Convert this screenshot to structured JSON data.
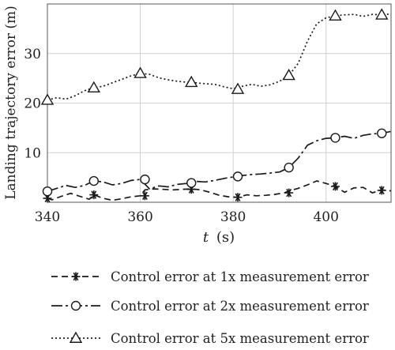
{
  "chart_data": {
    "type": "line",
    "xlabel_var": "t",
    "xlabel_unit": "(s)",
    "ylabel": "Landing trajectory error (m)",
    "xlim": [
      340,
      414
    ],
    "ylim": [
      0,
      40
    ],
    "xticks": [
      340,
      360,
      380,
      400
    ],
    "yticks": [
      10,
      20,
      30
    ],
    "grid": true,
    "legend_position": "bottom",
    "series": [
      {
        "name": "Control error at 1x measurement error",
        "color": "#1a1a1a",
        "dash": "8,5",
        "marker": "asterisk",
        "x": [
          340,
          341,
          343,
          345,
          347,
          349,
          350,
          352,
          354,
          356,
          358,
          360,
          361,
          363,
          365,
          367,
          369,
          371,
          373,
          375,
          377,
          379,
          381,
          383,
          385,
          387,
          389,
          391,
          392,
          394,
          396,
          398,
          400,
          402,
          404,
          406,
          408,
          410,
          412,
          414
        ],
        "y": [
          0.8,
          0.5,
          1.2,
          1.8,
          1.2,
          0.6,
          1.5,
          0.8,
          0.4,
          0.7,
          1.1,
          1.3,
          2.5,
          2.7,
          2.6,
          2.5,
          2.6,
          2.7,
          2.5,
          2.0,
          1.4,
          1.1,
          1.0,
          1.5,
          1.3,
          1.4,
          1.6,
          1.9,
          2.3,
          2.8,
          3.5,
          4.3,
          3.8,
          3.2,
          2.0,
          2.9,
          3.0,
          1.9,
          2.5,
          2.3
        ],
        "marker_x": [
          340,
          350,
          361,
          371,
          381,
          392,
          402,
          412
        ],
        "marker_y": [
          0.8,
          1.5,
          1.3,
          2.6,
          1.0,
          1.9,
          3.2,
          2.4
        ]
      },
      {
        "name": "Control error at 2x measurement error",
        "color": "#1a1a1a",
        "dash": "14,4,3,4",
        "marker": "circle",
        "x": [
          340,
          342,
          344,
          346,
          348,
          350,
          352,
          354,
          356,
          358,
          360,
          362,
          364,
          366,
          368,
          370,
          372,
          374,
          376,
          378,
          380,
          382,
          384,
          386,
          388,
          390,
          392,
          394,
          396,
          398,
          400,
          402,
          404,
          406,
          408,
          410,
          412,
          414
        ],
        "y": [
          2.2,
          2.8,
          3.4,
          3.0,
          3.4,
          4.3,
          4.1,
          3.5,
          3.8,
          4.4,
          4.6,
          2.7,
          3.3,
          3.1,
          3.6,
          3.8,
          4.2,
          4.1,
          4.4,
          4.8,
          5.1,
          5.4,
          5.6,
          5.7,
          5.9,
          6.1,
          7.0,
          8.9,
          11.5,
          12.4,
          12.9,
          13.0,
          13.3,
          12.9,
          13.5,
          13.8,
          13.9,
          14.3
        ],
        "marker_x": [
          340,
          350,
          361,
          371,
          381,
          392,
          402,
          412
        ],
        "marker_y": [
          2.2,
          4.3,
          4.6,
          3.9,
          5.2,
          7.0,
          13.0,
          13.9
        ]
      },
      {
        "name": "Control error at 5x measurement error",
        "color": "#1a1a1a",
        "dash": "2,3",
        "marker": "triangle",
        "x": [
          340,
          342,
          344,
          346,
          348,
          350,
          352,
          354,
          356,
          358,
          360,
          362,
          364,
          366,
          368,
          370,
          372,
          374,
          376,
          378,
          380,
          382,
          384,
          386,
          388,
          390,
          392,
          394,
          396,
          398,
          400,
          402,
          404,
          406,
          408,
          410,
          412,
          414
        ],
        "y": [
          20.6,
          21.1,
          20.8,
          21.5,
          22.5,
          23.1,
          23.4,
          24.1,
          24.8,
          25.5,
          26.0,
          25.8,
          25.1,
          24.7,
          24.4,
          24.2,
          24.1,
          23.9,
          23.8,
          23.3,
          22.9,
          23.4,
          23.8,
          23.4,
          23.7,
          24.4,
          25.6,
          28.0,
          32.5,
          36.0,
          37.2,
          37.6,
          37.8,
          37.9,
          37.5,
          37.9,
          37.8,
          38.0
        ],
        "marker_x": [
          340,
          350,
          360,
          371,
          381,
          392,
          402,
          412
        ],
        "marker_y": [
          20.6,
          23.1,
          26.0,
          24.2,
          22.8,
          25.6,
          37.6,
          37.8
        ]
      }
    ]
  }
}
